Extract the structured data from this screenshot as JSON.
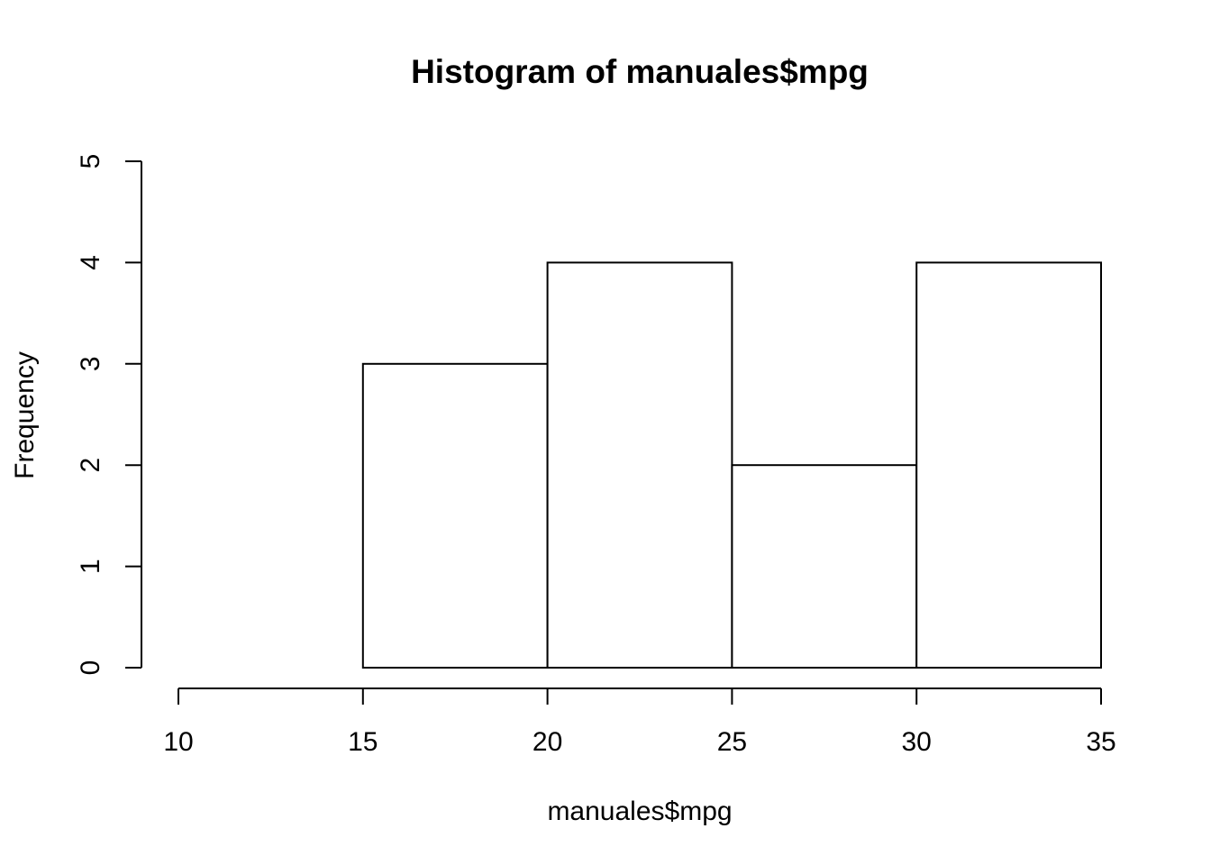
{
  "chart_data": {
    "type": "bar",
    "histogram": true,
    "title": "Histogram of manuales$mpg",
    "xlabel": "manuales$mpg",
    "ylabel": "Frequency",
    "bins": [
      {
        "from": 15,
        "to": 20,
        "count": 3
      },
      {
        "from": 20,
        "to": 25,
        "count": 4
      },
      {
        "from": 25,
        "to": 30,
        "count": 2
      },
      {
        "from": 30,
        "to": 35,
        "count": 4
      }
    ],
    "xlim": [
      10,
      35
    ],
    "ylim": [
      0,
      5
    ],
    "x_ticks": [
      "10",
      "15",
      "20",
      "25",
      "30",
      "35"
    ],
    "y_ticks": [
      "0",
      "1",
      "2",
      "3",
      "4",
      "5"
    ],
    "grid": false,
    "bar_fill": "#ffffff",
    "bar_stroke": "#000000"
  }
}
